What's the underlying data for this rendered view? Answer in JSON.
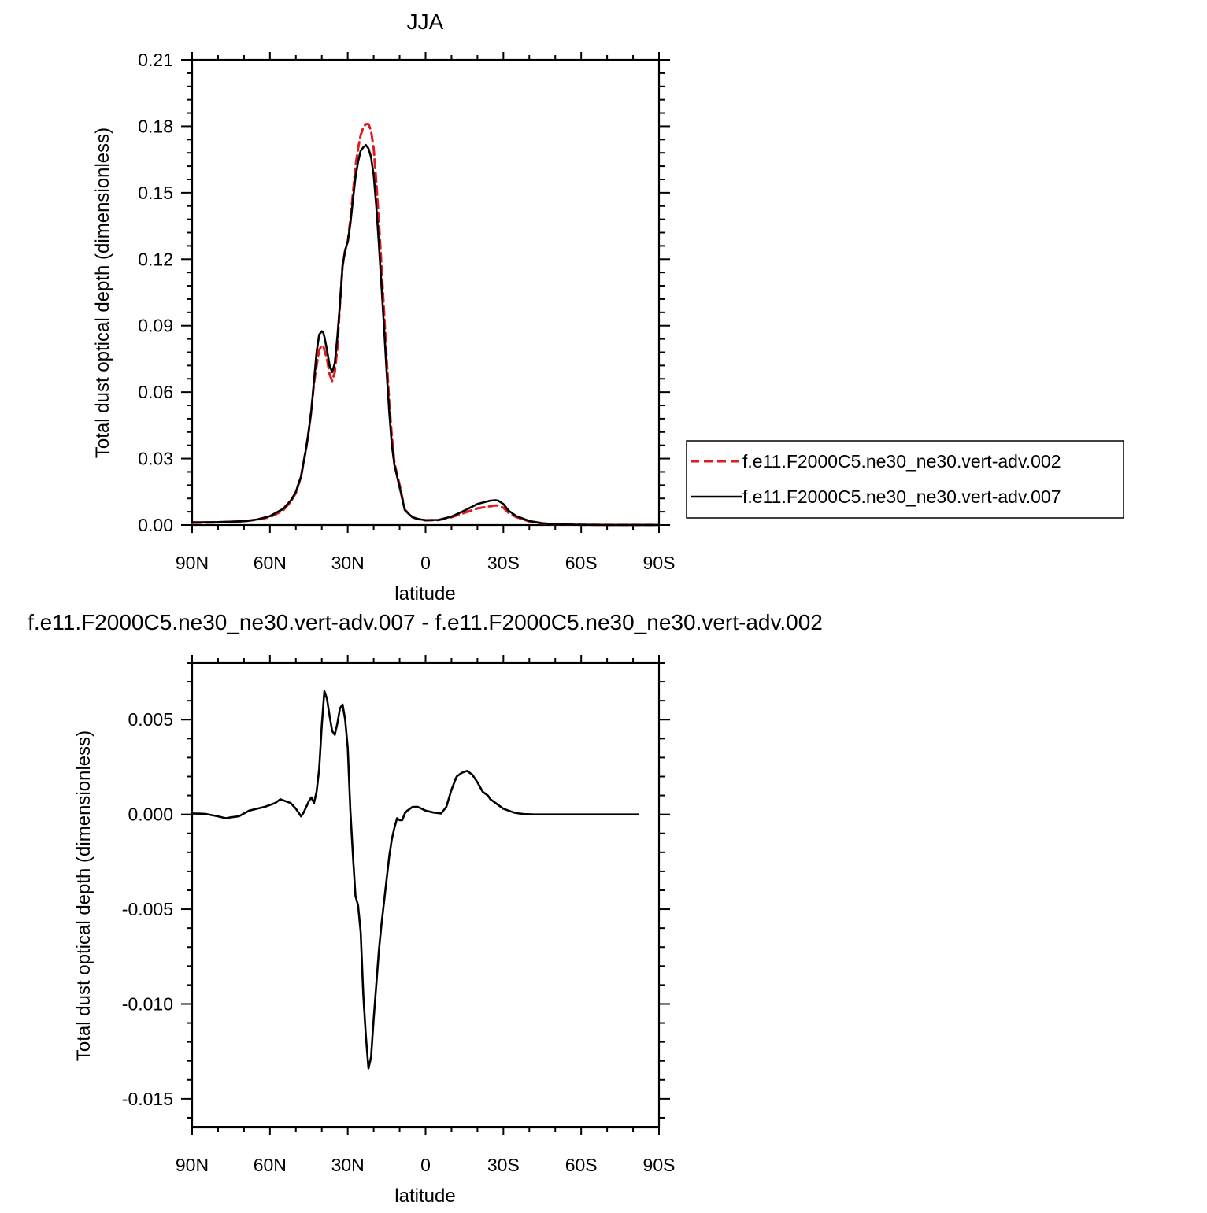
{
  "chart_data": [
    {
      "type": "line",
      "title": "JJA",
      "xlabel": "latitude",
      "ylabel": "Total dust optical depth (dimensionless)",
      "xlim": [
        90,
        -90
      ],
      "ylim": [
        0,
        0.21
      ],
      "x_ticks": [
        90,
        60,
        30,
        0,
        -30,
        -60,
        -90
      ],
      "x_tick_labels": [
        "90N",
        "60N",
        "30N",
        "0",
        "30S",
        "60S",
        "90S"
      ],
      "y_ticks": [
        0,
        0.03,
        0.06,
        0.09,
        0.12,
        0.15,
        0.18,
        0.21
      ],
      "y_tick_labels": [
        "0.00",
        "0.03",
        "0.06",
        "0.09",
        "0.12",
        "0.15",
        "0.18",
        "0.21"
      ],
      "legend_position": "right",
      "series": [
        {
          "name": "f.e11.F2000C5.ne30_ne30.vert-adv.002",
          "color": "#e31a1c",
          "dash": "dashed",
          "x": [
            90,
            80,
            70,
            65,
            60,
            55,
            52,
            50,
            48,
            46,
            45,
            44,
            43,
            42,
            41,
            40,
            39.5,
            39,
            38,
            37,
            36,
            35,
            34,
            33,
            32,
            31,
            30,
            29,
            28,
            27,
            26,
            25,
            24,
            23,
            22,
            21,
            20,
            19,
            18,
            17,
            16,
            15,
            14,
            13,
            12,
            11,
            10,
            8,
            6,
            5,
            3,
            0,
            -5,
            -10,
            -15,
            -20,
            -25,
            -27,
            -28,
            -30,
            -32,
            -35,
            -40,
            -45,
            -50,
            -60,
            -70,
            -80,
            -90
          ],
          "y": [
            0.001,
            0.0012,
            0.0017,
            0.0024,
            0.0035,
            0.0065,
            0.0105,
            0.0145,
            0.022,
            0.035,
            0.043,
            0.052,
            0.064,
            0.072,
            0.079,
            0.081,
            0.081,
            0.079,
            0.075,
            0.068,
            0.065,
            0.069,
            0.08,
            0.1,
            0.117,
            0.124,
            0.128,
            0.138,
            0.15,
            0.162,
            0.17,
            0.176,
            0.1795,
            0.181,
            0.181,
            0.178,
            0.17,
            0.155,
            0.137,
            0.117,
            0.096,
            0.075,
            0.055,
            0.04,
            0.028,
            0.023,
            0.018,
            0.007,
            0.0045,
            0.0035,
            0.0027,
            0.0021,
            0.0022,
            0.0035,
            0.0055,
            0.0075,
            0.0085,
            0.0088,
            0.0088,
            0.0078,
            0.0055,
            0.0036,
            0.0016,
            0.0007,
            0.0003,
            0.0001,
            5e-05,
            3e-05,
            2e-05
          ]
        },
        {
          "name": "f.e11.F2000C5.ne30_ne30.vert-adv.007",
          "color": "#000000",
          "dash": "solid",
          "x": [
            90,
            80,
            70,
            65,
            60,
            55,
            52,
            50,
            48,
            46,
            45,
            44,
            43,
            42,
            41,
            40,
            39.5,
            39,
            38,
            37,
            36,
            35,
            34,
            33,
            32,
            31,
            30,
            29,
            28,
            27,
            26,
            25,
            24,
            23,
            22,
            21,
            20,
            19,
            18,
            17,
            16,
            15,
            14,
            13,
            12,
            11,
            10,
            8,
            6,
            5,
            3,
            0,
            -5,
            -10,
            -15,
            -20,
            -25,
            -27,
            -28,
            -30,
            -32,
            -35,
            -40,
            -45,
            -50,
            -60,
            -70,
            -80,
            -90
          ],
          "y": [
            0.0012,
            0.0013,
            0.0017,
            0.0025,
            0.004,
            0.0072,
            0.011,
            0.015,
            0.022,
            0.035,
            0.043,
            0.052,
            0.065,
            0.078,
            0.086,
            0.0875,
            0.087,
            0.085,
            0.079,
            0.072,
            0.069,
            0.073,
            0.085,
            0.1,
            0.117,
            0.124,
            0.128,
            0.136,
            0.147,
            0.157,
            0.164,
            0.169,
            0.1705,
            0.1715,
            0.17,
            0.166,
            0.158,
            0.144,
            0.127,
            0.108,
            0.089,
            0.069,
            0.051,
            0.036,
            0.027,
            0.022,
            0.017,
            0.0068,
            0.0045,
            0.0035,
            0.0027,
            0.0022,
            0.0023,
            0.0038,
            0.0065,
            0.0095,
            0.011,
            0.0112,
            0.011,
            0.0095,
            0.0065,
            0.004,
            0.0018,
            0.0008,
            0.0003,
            0.0001,
            5e-05,
            3e-05,
            2e-05
          ]
        }
      ]
    },
    {
      "type": "line",
      "title": "f.e11.F2000C5.ne30_ne30.vert-adv.007 - f.e11.F2000C5.ne30_ne30.vert-adv.002",
      "xlabel": "latitude",
      "ylabel": "Total dust optical depth (dimensionless)",
      "xlim": [
        90,
        -90
      ],
      "ylim": [
        -0.0165,
        0.008
      ],
      "x_ticks": [
        90,
        60,
        30,
        0,
        -30,
        -60,
        -90
      ],
      "x_tick_labels": [
        "90N",
        "60N",
        "30N",
        "0",
        "30S",
        "60S",
        "90S"
      ],
      "y_ticks": [
        0.005,
        0,
        -0.005,
        -0.01,
        -0.015
      ],
      "y_tick_labels": [
        "0.005",
        "0.000",
        "-0.005",
        "-0.010",
        "-0.015"
      ],
      "series": [
        {
          "color": "#000000",
          "dash": "solid",
          "x": [
            90,
            85,
            80,
            77,
            75,
            72,
            70,
            68,
            65,
            62,
            60,
            58,
            56,
            54,
            52,
            50,
            48,
            47,
            46,
            45,
            44,
            43,
            42,
            41,
            40,
            39,
            38,
            37,
            36,
            35,
            34,
            33,
            32,
            31,
            30,
            29,
            28,
            27,
            26,
            25,
            24,
            23,
            22,
            21,
            20,
            19,
            18,
            17,
            16,
            15,
            14,
            13,
            12,
            11,
            10,
            9,
            8,
            7,
            6,
            5,
            3,
            0,
            -3,
            -6,
            -8,
            -10,
            -12,
            -14,
            -16,
            -18,
            -20,
            -22,
            -24,
            -25,
            -26,
            -27,
            -28,
            -30,
            -32,
            -34,
            -36,
            -38,
            -40,
            -42,
            -45,
            -48,
            -50,
            -55,
            -60,
            -70,
            -80,
            -82
          ],
          "y": [
            5e-05,
            3e-05,
            -0.0001,
            -0.0002,
            -0.00015,
            -0.0001,
            5e-05,
            0.0002,
            0.0003,
            0.0004,
            0.0005,
            0.0006,
            0.0008,
            0.0007,
            0.0006,
            0.0003,
            -0.0001,
            0.0001,
            0.0004,
            0.0007,
            0.0009,
            0.0006,
            0.0012,
            0.0024,
            0.0047,
            0.0065,
            0.0061,
            0.0052,
            0.0044,
            0.0042,
            0.0048,
            0.0056,
            0.0058,
            0.005,
            0.0035,
            0.0002,
            -0.0022,
            -0.0043,
            -0.0048,
            -0.0062,
            -0.0095,
            -0.0117,
            -0.0134,
            -0.0128,
            -0.0108,
            -0.009,
            -0.0072,
            -0.0058,
            -0.0046,
            -0.0034,
            -0.0022,
            -0.0013,
            -0.0007,
            -0.0002,
            -0.0003,
            -0.0003,
            5e-05,
            0.0002,
            0.0003,
            0.0004,
            0.0004,
            0.0002,
            0.0001,
            5e-05,
            0.0004,
            0.0013,
            0.002,
            0.0022,
            0.0023,
            0.0021,
            0.0017,
            0.0012,
            0.001,
            0.0008,
            0.0007,
            0.0006,
            0.0005,
            0.0003,
            0.0002,
            0.0001,
            5e-05,
            2e-05,
            1e-05,
            0,
            0,
            0,
            0,
            0,
            0,
            0,
            0,
            0
          ]
        }
      ]
    }
  ]
}
